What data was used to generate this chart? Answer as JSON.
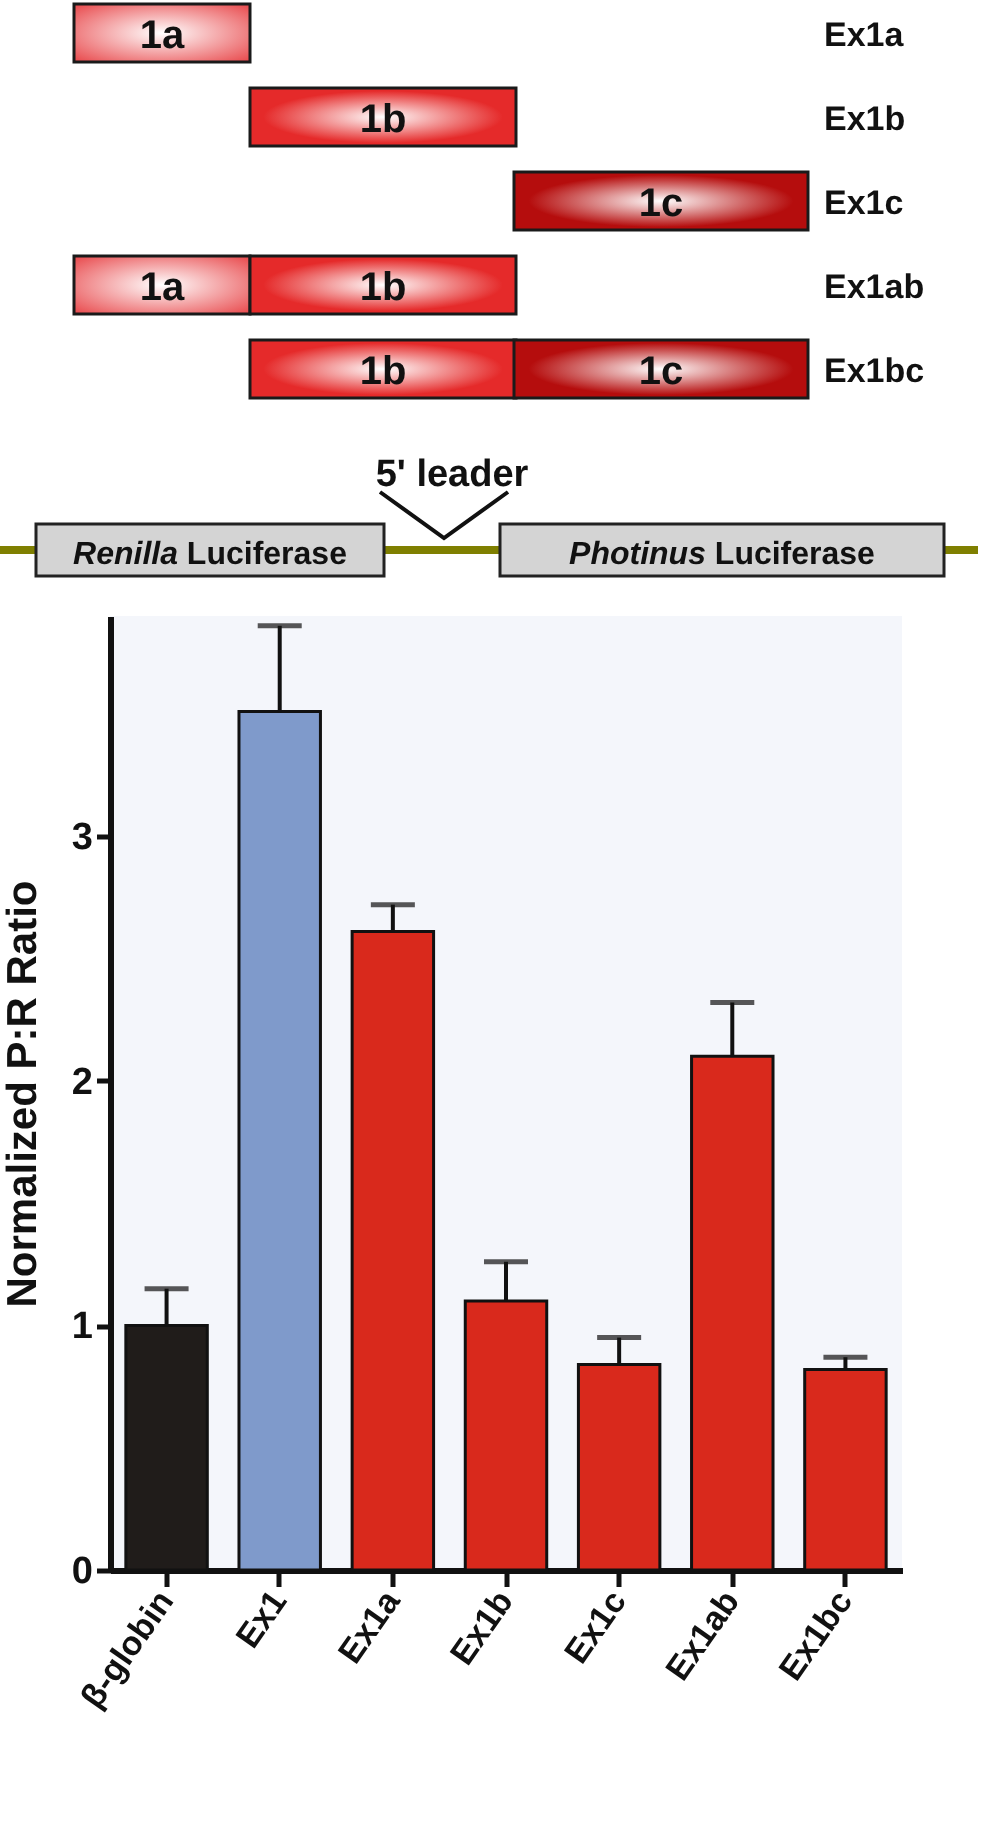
{
  "chart_data": {
    "type": "bar",
    "ylabel": "Normalized P:R Ratio",
    "categories": [
      "β-globin",
      "Ex1",
      "Ex1a",
      "Ex1b",
      "Ex1c",
      "Ex1ab",
      "Ex1bc"
    ],
    "values": [
      1.0,
      3.51,
      2.61,
      1.1,
      0.84,
      2.1,
      0.82
    ],
    "colors": [
      "#201c1a",
      "#7f9acb",
      "#d9291c",
      "#d9291c",
      "#d9291c",
      "#d9291c",
      "#d9291c"
    ],
    "errors": [
      [
        1.0,
        1.15
      ],
      [
        3.51,
        3.86
      ],
      [
        2.61,
        2.72
      ],
      [
        1.1,
        1.26
      ],
      [
        0.84,
        0.95
      ],
      [
        2.1,
        2.32
      ],
      [
        0.82,
        0.87
      ]
    ],
    "ylim": [
      0,
      3.9
    ],
    "yticks": [
      0,
      1,
      2,
      3
    ],
    "grid": false,
    "legend": false,
    "annotations": [
      "1a",
      "1b",
      "1c",
      "1a",
      "1b",
      "1b",
      "1c",
      "Ex1a",
      "Ex1b",
      "Ex1c",
      "Ex1ab",
      "Ex1bc",
      "5' leader",
      "Renilla Luciferase",
      "Photinus Luciferase"
    ]
  }
}
